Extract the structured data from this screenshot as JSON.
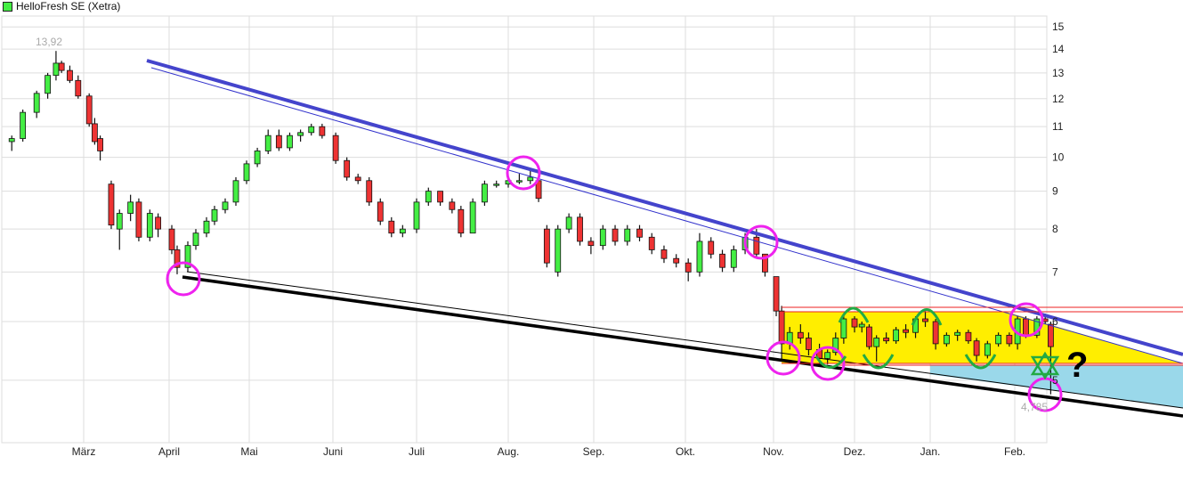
{
  "chart_data": {
    "type": "candlestick",
    "title": "HelloFresh SE (Xetra)",
    "legend_color": "#44ee44",
    "y_scale": "log",
    "ylim": [
      4.5,
      15.5
    ],
    "y_ticks": [
      5,
      6,
      7,
      8,
      9,
      10,
      11,
      12,
      13,
      14,
      15
    ],
    "x_ticks": [
      "März",
      "April",
      "Mai",
      "Juni",
      "Juli",
      "Aug.",
      "Sep.",
      "Okt.",
      "Nov.",
      "Dez.",
      "Jan.",
      "Feb."
    ],
    "grid": true,
    "up_color": "#44ee44",
    "down_color": "#ee3333",
    "annotations": {
      "high_label": "13,92",
      "low_label": "4,785",
      "question_mark": "?"
    },
    "candles_columns": [
      "date",
      "open",
      "high",
      "low",
      "close"
    ],
    "candles": [
      [
        "02-03",
        10.5,
        10.7,
        10.2,
        10.6
      ],
      [
        "02-07",
        10.6,
        11.6,
        10.5,
        11.5
      ],
      [
        "02-12",
        11.5,
        12.3,
        11.3,
        12.2
      ],
      [
        "02-16",
        12.2,
        13.0,
        12.0,
        12.9
      ],
      [
        "02-19",
        12.9,
        13.92,
        12.7,
        13.4
      ],
      [
        "02-21",
        13.4,
        13.5,
        13.0,
        13.1
      ],
      [
        "02-24",
        13.1,
        13.3,
        12.6,
        12.7
      ],
      [
        "02-27",
        12.7,
        12.9,
        12.0,
        12.1
      ],
      [
        "03-03",
        12.1,
        12.2,
        11.0,
        11.1
      ],
      [
        "03-05",
        11.1,
        11.3,
        10.4,
        10.5
      ],
      [
        "03-07",
        10.6,
        10.7,
        9.9,
        10.2
      ],
      [
        "03-11",
        9.2,
        9.3,
        8.0,
        8.1
      ],
      [
        "03-14",
        8.0,
        8.5,
        7.5,
        8.4
      ],
      [
        "03-18",
        8.4,
        8.9,
        8.2,
        8.7
      ],
      [
        "03-21",
        8.7,
        8.8,
        7.7,
        7.8
      ],
      [
        "03-25",
        7.8,
        8.5,
        7.7,
        8.4
      ],
      [
        "03-28",
        8.3,
        8.4,
        7.8,
        8.0
      ],
      [
        "04-02",
        8.0,
        8.1,
        7.4,
        7.5
      ],
      [
        "04-04",
        7.5,
        7.6,
        6.95,
        7.1
      ],
      [
        "04-08",
        7.1,
        7.7,
        7.0,
        7.6
      ],
      [
        "04-11",
        7.6,
        8.0,
        7.5,
        7.9
      ],
      [
        "04-15",
        7.9,
        8.3,
        7.8,
        8.2
      ],
      [
        "04-18",
        8.2,
        8.6,
        8.1,
        8.5
      ],
      [
        "04-22",
        8.5,
        8.8,
        8.4,
        8.7
      ],
      [
        "04-26",
        8.7,
        9.4,
        8.6,
        9.3
      ],
      [
        "04-30",
        9.3,
        9.9,
        9.2,
        9.8
      ],
      [
        "05-04",
        9.8,
        10.3,
        9.7,
        10.2
      ],
      [
        "05-08",
        10.2,
        10.9,
        10.1,
        10.7
      ],
      [
        "05-12",
        10.7,
        10.9,
        10.2,
        10.3
      ],
      [
        "05-16",
        10.3,
        10.8,
        10.2,
        10.7
      ],
      [
        "05-20",
        10.7,
        10.9,
        10.5,
        10.8
      ],
      [
        "05-24",
        10.8,
        11.1,
        10.7,
        11.0
      ],
      [
        "05-28",
        11.0,
        11.1,
        10.6,
        10.7
      ],
      [
        "06-02",
        10.7,
        10.8,
        9.8,
        9.9
      ],
      [
        "06-06",
        9.9,
        10.0,
        9.3,
        9.4
      ],
      [
        "06-10",
        9.4,
        9.5,
        9.2,
        9.3
      ],
      [
        "06-14",
        9.3,
        9.4,
        8.6,
        8.7
      ],
      [
        "06-18",
        8.7,
        8.8,
        8.1,
        8.2
      ],
      [
        "06-22",
        8.2,
        8.3,
        7.8,
        7.9
      ],
      [
        "06-26",
        7.9,
        8.1,
        7.8,
        8.0
      ],
      [
        "07-01",
        8.0,
        8.8,
        7.9,
        8.7
      ],
      [
        "07-05",
        8.7,
        9.1,
        8.6,
        9.0
      ],
      [
        "07-09",
        9.0,
        9.0,
        8.6,
        8.7
      ],
      [
        "07-13",
        8.7,
        8.8,
        8.4,
        8.5
      ],
      [
        "07-16",
        8.5,
        8.6,
        7.8,
        7.9
      ],
      [
        "07-20",
        7.9,
        8.8,
        7.9,
        8.7
      ],
      [
        "07-24",
        8.7,
        9.3,
        8.6,
        9.2
      ],
      [
        "07-28",
        9.2,
        9.3,
        9.1,
        9.2
      ],
      [
        "08-01",
        9.2,
        9.4,
        9.1,
        9.3
      ],
      [
        "08-05",
        9.3,
        9.5,
        9.2,
        9.3
      ],
      [
        "08-09",
        9.3,
        9.6,
        9.2,
        9.4
      ],
      [
        "08-12",
        9.3,
        9.3,
        8.7,
        8.8
      ],
      [
        "08-15",
        8.0,
        8.1,
        7.1,
        7.2
      ],
      [
        "08-19",
        7.0,
        8.1,
        6.9,
        8.0
      ],
      [
        "08-23",
        8.0,
        8.4,
        7.9,
        8.3
      ],
      [
        "08-27",
        8.3,
        8.4,
        7.6,
        7.7
      ],
      [
        "08-31",
        7.7,
        7.8,
        7.4,
        7.6
      ],
      [
        "09-04",
        7.6,
        8.1,
        7.5,
        8.0
      ],
      [
        "09-08",
        8.0,
        8.1,
        7.6,
        7.7
      ],
      [
        "09-12",
        7.7,
        8.1,
        7.6,
        8.0
      ],
      [
        "09-16",
        8.0,
        8.1,
        7.7,
        7.8
      ],
      [
        "09-20",
        7.8,
        7.9,
        7.4,
        7.5
      ],
      [
        "09-24",
        7.5,
        7.6,
        7.2,
        7.3
      ],
      [
        "09-28",
        7.3,
        7.4,
        7.1,
        7.2
      ],
      [
        "10-02",
        7.2,
        7.3,
        6.8,
        7.0
      ],
      [
        "10-06",
        7.0,
        7.9,
        6.9,
        7.7
      ],
      [
        "10-10",
        7.7,
        7.8,
        7.3,
        7.4
      ],
      [
        "10-14",
        7.4,
        7.5,
        7.0,
        7.1
      ],
      [
        "10-18",
        7.1,
        7.6,
        7.0,
        7.5
      ],
      [
        "10-22",
        7.5,
        7.9,
        7.4,
        7.8
      ],
      [
        "10-26",
        7.8,
        8.0,
        7.3,
        7.4
      ],
      [
        "10-29",
        7.4,
        7.4,
        6.9,
        7.0
      ],
      [
        "11-02",
        6.9,
        6.9,
        6.1,
        6.2
      ],
      [
        "11-04",
        6.2,
        6.3,
        5.3,
        5.6
      ],
      [
        "11-07",
        5.6,
        5.9,
        5.5,
        5.8
      ],
      [
        "11-11",
        5.8,
        5.95,
        5.6,
        5.7
      ],
      [
        "11-14",
        5.7,
        5.8,
        5.4,
        5.5
      ],
      [
        "11-18",
        5.5,
        5.6,
        5.25,
        5.35
      ],
      [
        "11-21",
        5.35,
        5.5,
        5.25,
        5.45
      ],
      [
        "11-24",
        5.45,
        5.8,
        5.4,
        5.7
      ],
      [
        "11-27",
        5.7,
        6.1,
        5.6,
        6.05
      ],
      [
        "12-01",
        6.05,
        6.1,
        5.8,
        5.9
      ],
      [
        "12-04",
        5.9,
        6.0,
        5.8,
        5.95
      ],
      [
        "12-07",
        5.9,
        5.95,
        5.5,
        5.55
      ],
      [
        "12-10",
        5.55,
        5.75,
        5.3,
        5.7
      ],
      [
        "12-14",
        5.7,
        5.8,
        5.6,
        5.65
      ],
      [
        "12-18",
        5.65,
        5.9,
        5.6,
        5.85
      ],
      [
        "12-22",
        5.85,
        5.95,
        5.7,
        5.8
      ],
      [
        "12-26",
        5.8,
        6.1,
        5.7,
        6.05
      ],
      [
        "12-30",
        6.05,
        6.2,
        5.9,
        6.0
      ],
      [
        "01-03",
        6.0,
        6.05,
        5.5,
        5.6
      ],
      [
        "01-07",
        5.6,
        5.8,
        5.55,
        5.75
      ],
      [
        "01-11",
        5.75,
        5.85,
        5.65,
        5.8
      ],
      [
        "01-15",
        5.8,
        5.85,
        5.6,
        5.65
      ],
      [
        "01-18",
        5.65,
        5.7,
        5.3,
        5.4
      ],
      [
        "01-22",
        5.4,
        5.65,
        5.35,
        5.6
      ],
      [
        "01-26",
        5.6,
        5.8,
        5.55,
        5.75
      ],
      [
        "01-30",
        5.75,
        5.8,
        5.55,
        5.6
      ],
      [
        "02-02",
        5.6,
        6.1,
        5.5,
        6.05
      ],
      [
        "02-05",
        6.05,
        6.1,
        5.7,
        5.75
      ],
      [
        "02-09",
        5.75,
        6.1,
        5.7,
        6.05
      ],
      [
        "02-12",
        6.05,
        6.15,
        5.95,
        6.0
      ],
      [
        "02-14",
        5.95,
        6.0,
        4.785,
        5.55
      ]
    ]
  }
}
